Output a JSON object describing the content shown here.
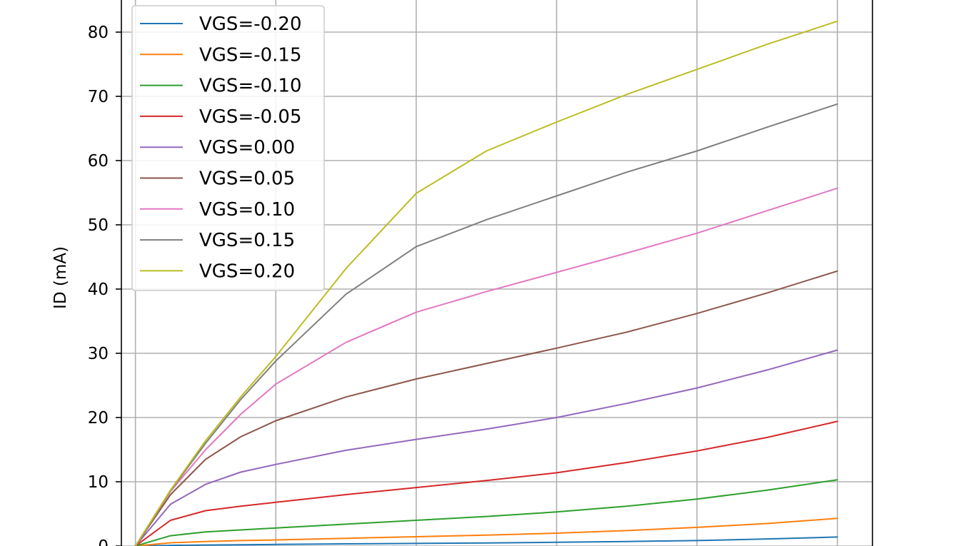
{
  "chart_data": {
    "type": "line",
    "title": "",
    "xlabel": "",
    "ylabel": "ID (mA)",
    "xlim": [
      -0.1,
      5.25
    ],
    "ylim": [
      0,
      85
    ],
    "grid": true,
    "legend_position": "upper-left",
    "y_ticks": [
      0,
      10,
      20,
      30,
      40,
      50,
      60,
      70,
      80
    ],
    "x_grid": [
      0,
      1,
      2,
      3,
      4,
      5
    ],
    "x": [
      0,
      0.25,
      0.5,
      0.75,
      1,
      1.5,
      2,
      2.5,
      3,
      3.5,
      4,
      4.5,
      5
    ],
    "series": [
      {
        "name": "VGS=-0.20",
        "color": "#1f77b4",
        "values": [
          0,
          0.1,
          0.15,
          0.2,
          0.25,
          0.33,
          0.4,
          0.48,
          0.58,
          0.7,
          0.85,
          1.1,
          1.4
        ]
      },
      {
        "name": "VGS=-0.15",
        "color": "#ff7f0e",
        "values": [
          0,
          0.5,
          0.7,
          0.85,
          0.95,
          1.2,
          1.45,
          1.7,
          2.0,
          2.4,
          2.9,
          3.5,
          4.3
        ]
      },
      {
        "name": "VGS=-0.10",
        "color": "#2ca02c",
        "values": [
          0,
          1.6,
          2.2,
          2.5,
          2.8,
          3.4,
          4.0,
          4.6,
          5.3,
          6.2,
          7.3,
          8.7,
          10.3
        ]
      },
      {
        "name": "VGS=-0.05",
        "color": "#d62728",
        "values": [
          0,
          4.0,
          5.5,
          6.2,
          6.8,
          8.0,
          9.1,
          10.2,
          11.4,
          13.0,
          14.8,
          16.9,
          19.4
        ]
      },
      {
        "name": "VGS=0.00",
        "color": "#9467bd",
        "values": [
          0,
          6.5,
          9.6,
          11.5,
          12.7,
          14.9,
          16.6,
          18.2,
          20.0,
          22.2,
          24.6,
          27.4,
          30.5
        ]
      },
      {
        "name": "VGS=0.05",
        "color": "#8c564b",
        "values": [
          0,
          8.0,
          13.5,
          17.0,
          19.5,
          23.2,
          26.0,
          28.4,
          30.8,
          33.3,
          36.2,
          39.4,
          42.8
        ]
      },
      {
        "name": "VGS=0.10",
        "color": "#e377c2",
        "values": [
          0,
          8.5,
          15.0,
          20.5,
          25.2,
          31.7,
          36.4,
          39.6,
          42.6,
          45.6,
          48.7,
          52.2,
          55.7
        ]
      },
      {
        "name": "VGS=0.15",
        "color": "#7f7f7f",
        "values": [
          0,
          8.6,
          16.0,
          22.8,
          28.8,
          39.2,
          46.6,
          50.8,
          54.5,
          58.2,
          61.5,
          65.2,
          68.8
        ]
      },
      {
        "name": "VGS=0.20",
        "color": "#bcbd22",
        "values": [
          0,
          8.7,
          16.4,
          23.2,
          29.5,
          43.2,
          54.9,
          61.5,
          66.0,
          70.3,
          74.2,
          78.1,
          81.7
        ]
      }
    ]
  }
}
